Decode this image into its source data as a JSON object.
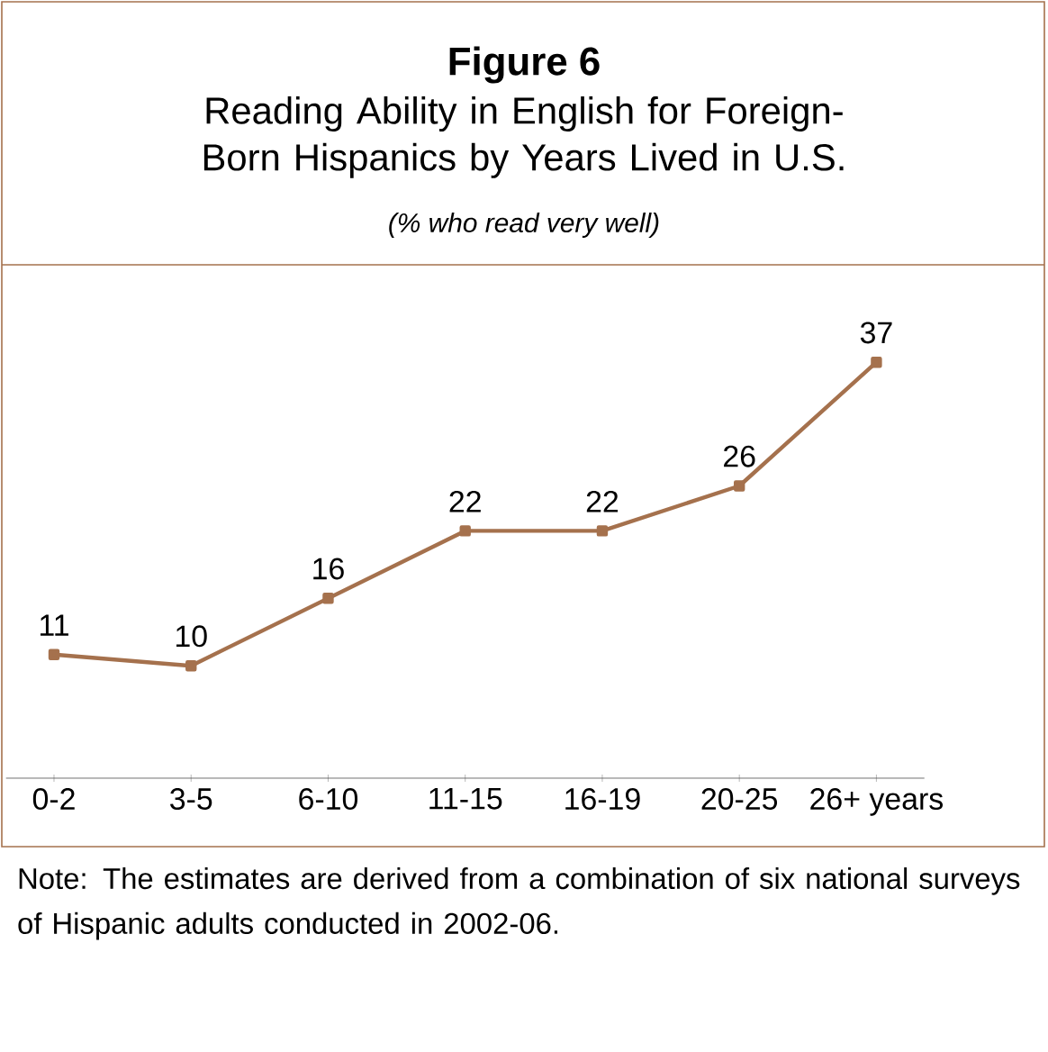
{
  "chart_data": {
    "type": "line",
    "title": "Figure 6",
    "subtitle": "Reading Ability in English for Foreign-Born Hispanics by Years Lived in U.S.",
    "annotations": [
      "(% who read very well)",
      "Note: The estimates are derived from a combination of six national surveys of Hispanic adults conducted in 2002-06."
    ],
    "categories": [
      "0-2",
      "3-5",
      "6-10",
      "11-15",
      "16-19",
      "20-25",
      "26+ years"
    ],
    "series": [
      {
        "color": "#a5714d",
        "values": [
          11,
          10,
          16,
          22,
          22,
          26,
          37
        ]
      }
    ],
    "marker": "square",
    "data_labels": true
  }
}
